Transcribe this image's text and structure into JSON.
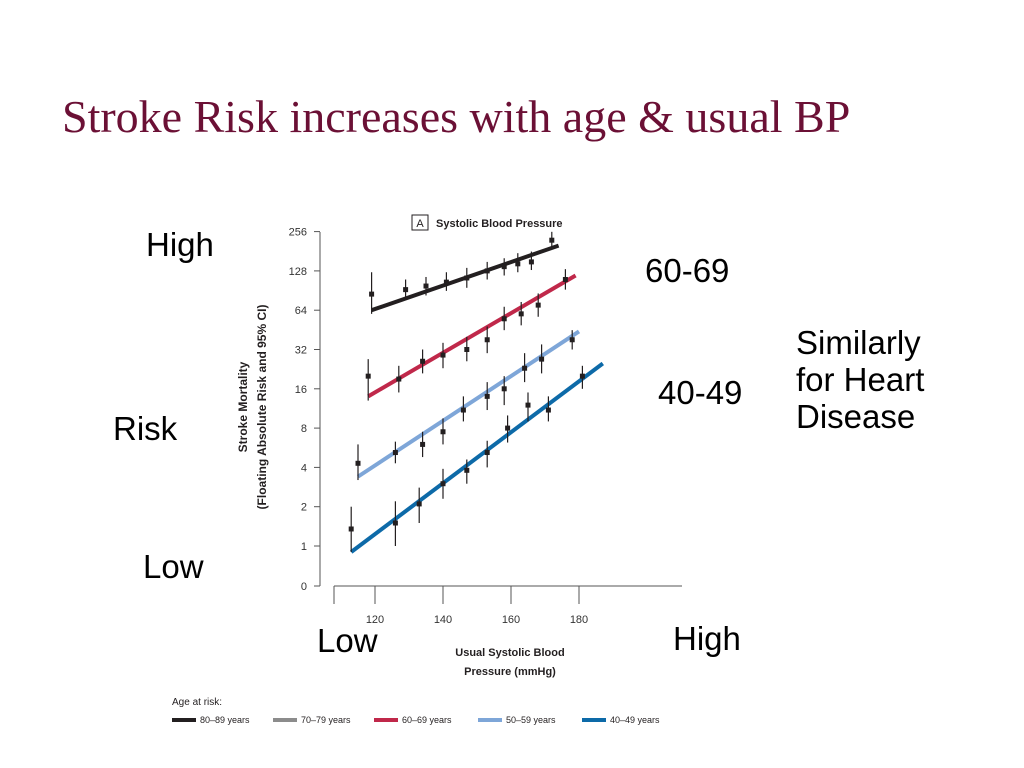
{
  "slide": {
    "title": "Stroke Risk increases with age & usual BP",
    "labels": {
      "y_high": "High",
      "y_mid": "Risk",
      "y_low": "Low",
      "x_low": "Low",
      "x_high": "High",
      "line_60_69": "60-69",
      "line_40_49": "40-49"
    },
    "note_lines": [
      "Similarly",
      "for Heart",
      "Disease"
    ]
  },
  "chart_data": {
    "type": "scatter",
    "panel_label": "A",
    "title": "Systolic Blood Pressure",
    "xlabel": [
      "Usual Systolic Blood",
      "Pressure (mmHg)"
    ],
    "ylabel": [
      "Stroke Mortality",
      "(Floating Absolute Risk and 95% CI)"
    ],
    "x_ticks": [
      120,
      140,
      160,
      180
    ],
    "y_ticks": [
      "0",
      "1",
      "2",
      "4",
      "8",
      "16",
      "32",
      "64",
      "128",
      "256"
    ],
    "y_scale": "log2",
    "legend_title": "Age at risk:",
    "legend_position": "bottom",
    "series": [
      {
        "name": "80–89 years",
        "color": "#231f20",
        "points": [
          [
            119,
            85,
            125,
            60
          ],
          [
            129,
            92,
            110,
            78
          ],
          [
            135,
            98,
            115,
            83
          ],
          [
            141,
            105,
            125,
            90
          ],
          [
            147,
            113,
            135,
            95
          ],
          [
            153,
            128,
            150,
            110
          ],
          [
            158,
            138,
            160,
            118
          ],
          [
            162,
            145,
            175,
            125
          ],
          [
            166,
            150,
            180,
            130
          ],
          [
            172,
            220,
            255,
            190
          ]
        ],
        "fit": [
          [
            119,
            64
          ],
          [
            174,
            200
          ]
        ]
      },
      {
        "name": "70–79 years",
        "color": "#8c8c8c",
        "points": [],
        "fit": []
      },
      {
        "name": "60–69 years",
        "color": "#c0284a",
        "points": [
          [
            118,
            20,
            27,
            13
          ],
          [
            127,
            19,
            24,
            15
          ],
          [
            134,
            26,
            32,
            21
          ],
          [
            140,
            29,
            36,
            23
          ],
          [
            147,
            32,
            40,
            26
          ],
          [
            153,
            38,
            48,
            30
          ],
          [
            158,
            55,
            68,
            45
          ],
          [
            163,
            60,
            74,
            49
          ],
          [
            168,
            70,
            86,
            57
          ],
          [
            176,
            110,
            132,
            92
          ]
        ],
        "fit": [
          [
            118,
            14
          ],
          [
            179,
            118
          ]
        ]
      },
      {
        "name": "50–59 years",
        "color": "#7ea6d8",
        "points": [
          [
            115,
            4.3,
            6,
            3.2
          ],
          [
            126,
            5.2,
            6.3,
            4.3
          ],
          [
            134,
            6,
            7.5,
            4.8
          ],
          [
            140,
            7.5,
            9.5,
            6
          ],
          [
            146,
            11,
            14,
            9
          ],
          [
            153,
            14,
            18,
            11
          ],
          [
            158,
            16,
            20,
            12
          ],
          [
            164,
            23,
            30,
            18
          ],
          [
            169,
            27,
            35,
            21
          ],
          [
            178,
            38,
            45,
            32
          ]
        ],
        "fit": [
          [
            115,
            3.4
          ],
          [
            180,
            44
          ]
        ]
      },
      {
        "name": "40–49 years",
        "color": "#0d6aa8",
        "points": [
          [
            113,
            1.35,
            2,
            0.9
          ],
          [
            126,
            1.5,
            2.2,
            1
          ],
          [
            133,
            2.1,
            2.8,
            1.5
          ],
          [
            140,
            3,
            3.9,
            2.3
          ],
          [
            147,
            3.8,
            4.6,
            3
          ],
          [
            153,
            5.2,
            6.4,
            4
          ],
          [
            159,
            8,
            10,
            6.2
          ],
          [
            165,
            12,
            15,
            9
          ],
          [
            171,
            11,
            14,
            9
          ],
          [
            181,
            20,
            24,
            16
          ]
        ],
        "fit": [
          [
            113,
            0.9
          ],
          [
            187,
            25
          ]
        ]
      }
    ]
  }
}
